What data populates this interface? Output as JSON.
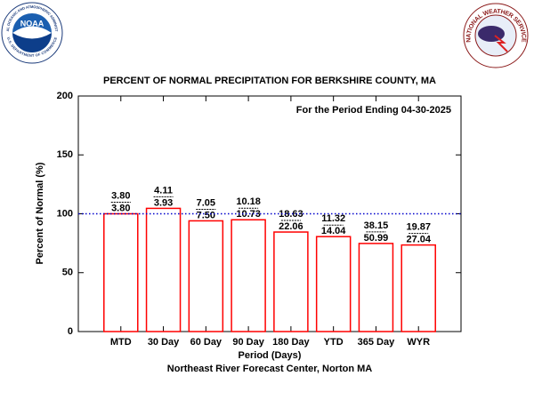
{
  "chart_data": {
    "type": "bar",
    "title": "PERCENT OF NORMAL PRECIPITATION FOR BERKSHIRE COUNTY, MA",
    "subtitle": "For the Period Ending 04-30-2025",
    "x_label": "Period (Days)",
    "y_label": "Percent of Normal (%)",
    "footnote": "Northeast River Forecast Center, Norton MA",
    "categories": [
      "MTD",
      "30 Day",
      "60 Day",
      "90 Day",
      "180 Day",
      "YTD",
      "365 Day",
      "WYR"
    ],
    "values": [
      100,
      104.6,
      94,
      94.9,
      84.5,
      80.6,
      74.8,
      73.5
    ],
    "observed": [
      "3.80",
      "4.11",
      "7.05",
      "10.18",
      "18.63",
      "11.32",
      "38.15",
      "19.87"
    ],
    "normal": [
      "3.80",
      "3.93",
      "7.50",
      "10.73",
      "22.06",
      "14.04",
      "50.99",
      "27.04"
    ],
    "color": "#ff0000",
    "reference_line": 100,
    "reference_color": "#0000cc",
    "ylim": [
      0,
      200
    ],
    "yticks": [
      0,
      50,
      100,
      150,
      200
    ]
  },
  "logos": {
    "noaa": "NOAA",
    "noaa_ring_top": "NATIONAL OCEANIC AND ATMOSPHERIC ADMINISTRATION",
    "noaa_ring_bottom": "U.S. DEPARTMENT OF COMMERCE",
    "nws_ring": "NATIONAL WEATHER SERVICE"
  }
}
